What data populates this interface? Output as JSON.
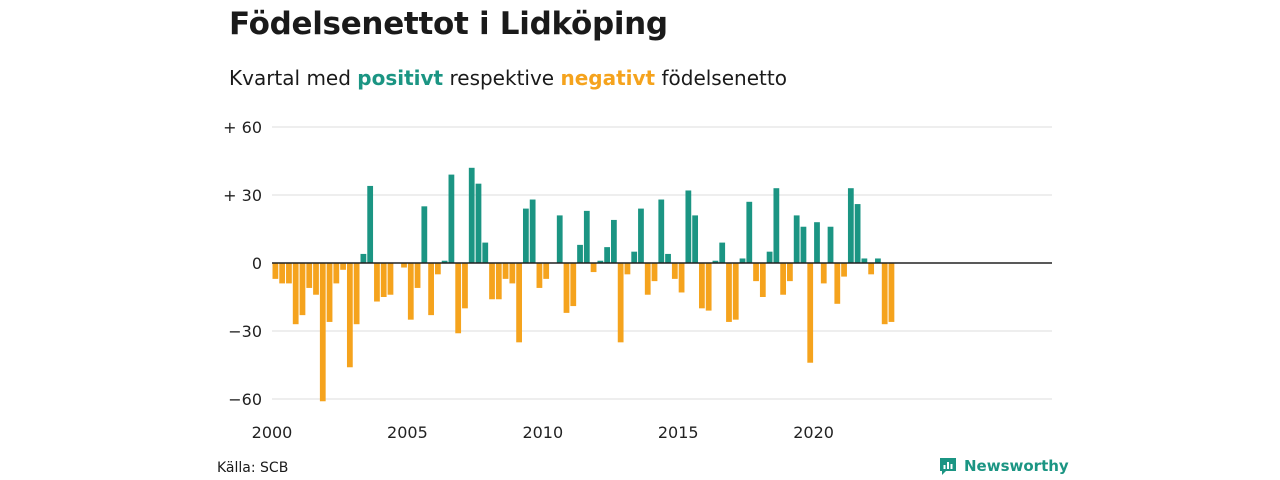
{
  "title": "Födelsenettot i Lidköping",
  "subtitle": {
    "prefix": "Kvartal med ",
    "positive": "positivt",
    "middle": " respektive ",
    "negative": "negativt",
    "suffix": " födelsenetto"
  },
  "colors": {
    "positive": "#1b9583",
    "negative": "#f5a31d",
    "grid": "#dddddd",
    "axis": "#222222"
  },
  "source": "Källa: SCB",
  "brand": {
    "name": "Newsworthy",
    "icon": "chart-logo-icon"
  },
  "chart_data": {
    "type": "bar",
    "title": "Födelsenettot i Lidköping",
    "subtitle": "Kvartal med positivt respektive negativt födelsenetto",
    "xlabel": "",
    "ylabel": "",
    "ylim": [
      -66,
      62
    ],
    "yticks": [
      60,
      30,
      0,
      -30,
      -60
    ],
    "ytick_labels": [
      "+ 60",
      "+ 30",
      "0",
      "−30",
      "−60"
    ],
    "xticks": [
      2000,
      2005,
      2010,
      2015,
      2020
    ],
    "grid": true,
    "start": 2000,
    "period": "quarter",
    "values": [
      -7,
      -9,
      -9,
      -27,
      -23,
      -11,
      -14,
      -61,
      -26,
      -9,
      -3,
      -46,
      -27,
      4,
      34,
      -17,
      -15,
      -14,
      0,
      -2,
      -25,
      -11,
      25,
      -23,
      -5,
      1,
      39,
      -31,
      -20,
      42,
      35,
      9,
      -16,
      -16,
      -7,
      -9,
      -35,
      24,
      28,
      -11,
      -7,
      0,
      21,
      -22,
      -19,
      8,
      23,
      -4,
      1,
      7,
      19,
      -35,
      -5,
      5,
      24,
      -14,
      -8,
      28,
      4,
      -7,
      -13,
      32,
      21,
      -20,
      -21,
      1,
      9,
      -26,
      -25,
      2,
      27,
      -8,
      -15,
      5,
      33,
      -14,
      -8,
      21,
      16,
      -44,
      18,
      -9,
      16,
      -18,
      -6,
      33,
      26,
      2,
      -5,
      2,
      -27,
      -26
    ]
  }
}
